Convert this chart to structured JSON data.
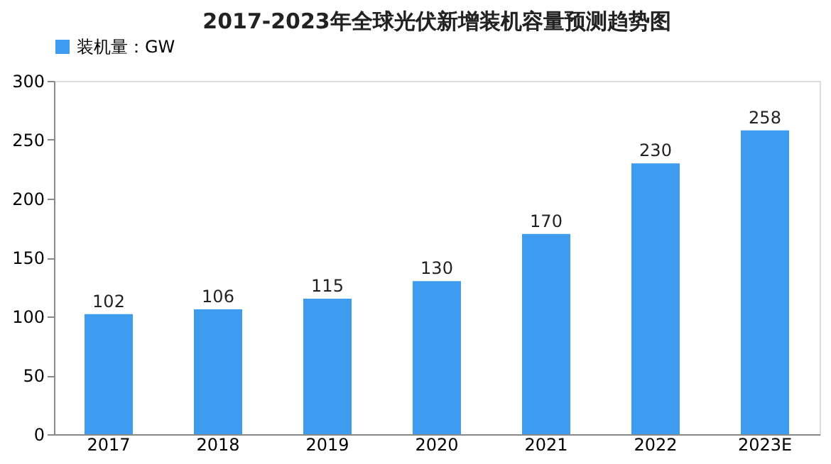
{
  "chart_data": {
    "type": "bar",
    "title": "2017-2023年全球光伏新增装机容量预测趋势图",
    "categories": [
      "2017",
      "2018",
      "2019",
      "2020",
      "2021",
      "2022",
      "2023E"
    ],
    "series": [
      {
        "name": "装机量：GW",
        "color": "#3d9cf0",
        "values": [
          102,
          106,
          115,
          130,
          170,
          230,
          258
        ]
      }
    ],
    "ylim": [
      0,
      300
    ],
    "yticks": [
      0,
      50,
      100,
      150,
      200,
      250,
      300
    ],
    "grid": false,
    "legend": "top",
    "data_labels": true
  }
}
